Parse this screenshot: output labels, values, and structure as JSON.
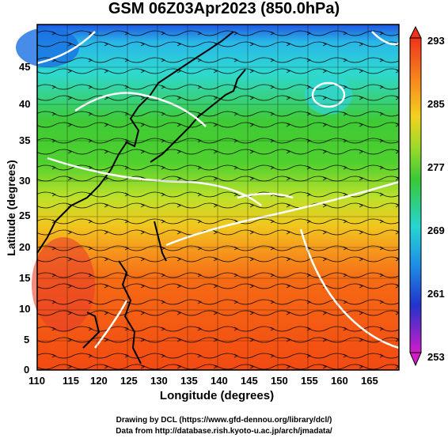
{
  "title": "GSM 06Z03Apr2023 (850.0hPa)",
  "axes": {
    "x_label": "Longitude (degrees)",
    "y_label": "Latitude  (degrees)",
    "x_ticks": [
      "110",
      "115",
      "120",
      "125",
      "130",
      "135",
      "140",
      "145",
      "150",
      "155",
      "160",
      "165"
    ],
    "y_ticks": [
      "0",
      "5",
      "10",
      "15",
      "20",
      "25",
      "30",
      "35",
      "40",
      "45"
    ]
  },
  "colorbar": {
    "labels": [
      "293",
      "285",
      "277",
      "269",
      "261",
      "253"
    ]
  },
  "footer": {
    "line1": "Drawing by DCL (https://www.gfd-dennou.org/library/dcl/)",
    "line2": "Data from http://database.rish.kyoto-u.ac.jp/arch/jmadata/"
  }
}
